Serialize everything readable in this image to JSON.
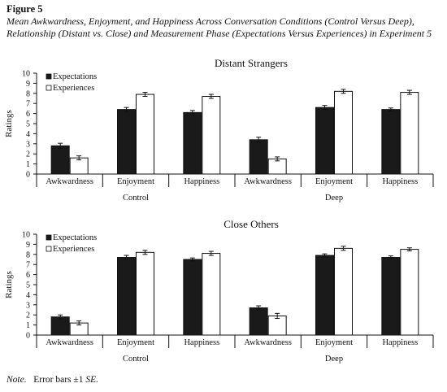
{
  "figure": {
    "label": "Figure 5",
    "caption": "Mean Awkwardness, Enjoyment, and Happiness Across Conversation Conditions (Control Versus Deep), Relationship (Distant vs. Close) and Measurement Phase (Expectations Versus Experiences) in Experiment 5",
    "note_prefix": "Note.",
    "note_text": "Error bars ±1 ",
    "note_se": "SE."
  },
  "colors": {
    "expectations": "#1a1a1a",
    "experiences": "#ffffff",
    "outline": "#111111"
  },
  "chart_data": [
    {
      "type": "bar",
      "title": "Distant Strangers",
      "ylabel": "Ratings",
      "ylim": [
        0,
        10
      ],
      "yticks": [
        "0",
        "1",
        "2",
        "3",
        "4",
        "5",
        "6",
        "7",
        "8",
        "9",
        "10"
      ],
      "legend": "top-left",
      "categories": [
        "Awkwardness",
        "Enjoyment",
        "Happiness",
        "Awkwardness",
        "Enjoyment",
        "Happiness"
      ],
      "groups": [
        {
          "label": "Control",
          "span": [
            0,
            2
          ]
        },
        {
          "label": "Deep",
          "span": [
            3,
            5
          ]
        }
      ],
      "series": [
        {
          "name": "Expectations",
          "values": [
            2.8,
            6.4,
            6.1,
            3.4,
            6.6,
            6.4
          ],
          "errors": [
            0.25,
            0.2,
            0.2,
            0.25,
            0.2,
            0.15
          ]
        },
        {
          "name": "Experiences",
          "values": [
            1.6,
            7.9,
            7.7,
            1.5,
            8.2,
            8.1
          ],
          "errors": [
            0.2,
            0.2,
            0.2,
            0.2,
            0.2,
            0.2
          ]
        }
      ]
    },
    {
      "type": "bar",
      "title": "Close Others",
      "ylabel": "Ratings",
      "ylim": [
        0,
        10
      ],
      "yticks": [
        "0",
        "1",
        "2",
        "3",
        "4",
        "5",
        "6",
        "7",
        "8",
        "9",
        "10"
      ],
      "legend": "top-left",
      "categories": [
        "Awkwardness",
        "Enjoyment",
        "Happiness",
        "Awkwardness",
        "Enjoyment",
        "Happiness"
      ],
      "groups": [
        {
          "label": "Control",
          "span": [
            0,
            2
          ]
        },
        {
          "label": "Deep",
          "span": [
            3,
            5
          ]
        }
      ],
      "series": [
        {
          "name": "Expectations",
          "values": [
            1.8,
            7.7,
            7.5,
            2.7,
            7.9,
            7.7
          ],
          "errors": [
            0.2,
            0.2,
            0.15,
            0.2,
            0.15,
            0.15
          ]
        },
        {
          "name": "Experiences",
          "values": [
            1.2,
            8.2,
            8.1,
            1.9,
            8.6,
            8.5
          ],
          "errors": [
            0.2,
            0.2,
            0.2,
            0.25,
            0.2,
            0.15
          ]
        }
      ]
    }
  ]
}
